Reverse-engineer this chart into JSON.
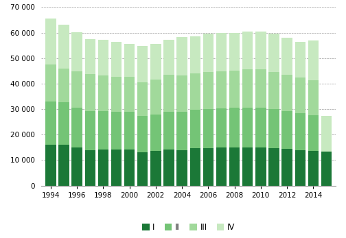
{
  "years": [
    1994,
    1995,
    1996,
    1997,
    1998,
    1999,
    2000,
    2001,
    2002,
    2003,
    2004,
    2005,
    2006,
    2007,
    2008,
    2009,
    2010,
    2011,
    2012,
    2013,
    2014,
    2015
  ],
  "Q1": [
    16000,
    16100,
    14900,
    14000,
    14200,
    14200,
    14100,
    13200,
    13600,
    14200,
    13900,
    14800,
    14800,
    14900,
    15000,
    15000,
    15100,
    14800,
    14400,
    13900,
    13600,
    13300
  ],
  "Q2": [
    17000,
    16500,
    15700,
    15200,
    15000,
    14700,
    14800,
    14100,
    14400,
    14700,
    15100,
    14900,
    15200,
    15300,
    15500,
    15500,
    15400,
    15100,
    14700,
    14400,
    14000,
    0
  ],
  "Q3": [
    14500,
    13400,
    14200,
    14500,
    13900,
    13700,
    13800,
    13300,
    13600,
    14500,
    14100,
    14300,
    14500,
    14500,
    14500,
    15000,
    15000,
    14600,
    14300,
    14000,
    13700,
    0
  ],
  "Q4": [
    18000,
    17000,
    15400,
    13900,
    14000,
    13900,
    13000,
    14200,
    14100,
    13900,
    15200,
    14600,
    15100,
    15200,
    15000,
    14900,
    15000,
    15000,
    14700,
    14100,
    15700,
    14000
  ],
  "colors": [
    "#1b7837",
    "#74c476",
    "#a1d99b",
    "#c7e9c0"
  ],
  "ylim": [
    0,
    70000
  ],
  "yticks": [
    0,
    10000,
    20000,
    30000,
    40000,
    50000,
    60000,
    70000
  ],
  "background_color": "#ffffff",
  "grid_color": "#999999",
  "bar_width": 0.8,
  "xlim": [
    1993.3,
    2015.7
  ]
}
